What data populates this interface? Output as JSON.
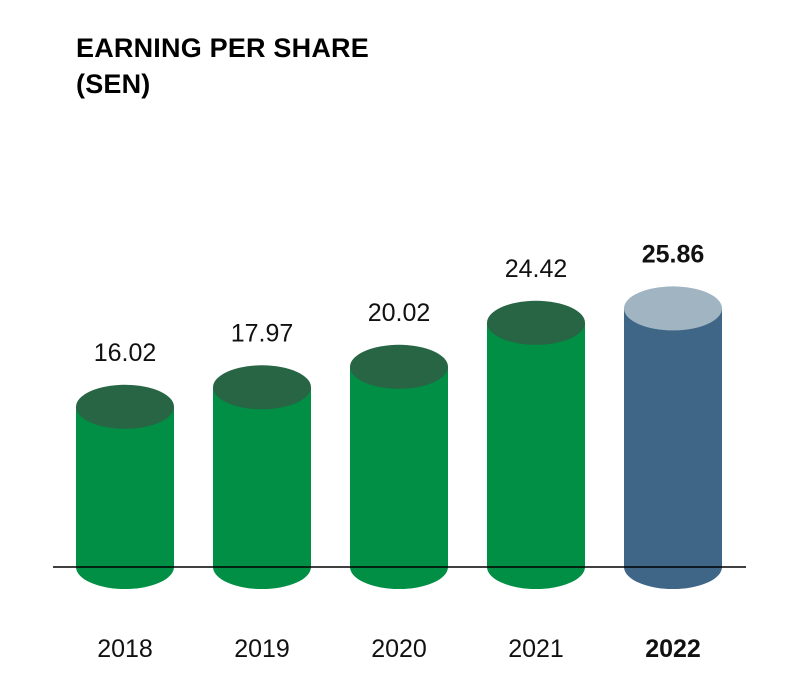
{
  "header": {
    "title_line1": "EARNING PER SHARE",
    "title_line2": "(SEN)"
  },
  "colors": {
    "bar_body": "#008F44",
    "bar_top": "#276545",
    "highlight_body": "#3F6687",
    "highlight_top": "#A0B4C1",
    "baseline": "#000000",
    "text": "#111111"
  },
  "chart_data": {
    "type": "bar",
    "style": "3d-cylinder",
    "title": "EARNING PER SHARE (SEN)",
    "categories": [
      "2018",
      "2019",
      "2020",
      "2021",
      "2022"
    ],
    "values": [
      16.02,
      17.97,
      20.02,
      24.42,
      25.86
    ],
    "value_labels": [
      "16.02",
      "17.97",
      "20.02",
      "24.42",
      "25.86"
    ],
    "highlighted_category": "2022",
    "xlabel": "",
    "ylabel": "",
    "axis_visible": false,
    "grid": false,
    "legend": "none"
  }
}
